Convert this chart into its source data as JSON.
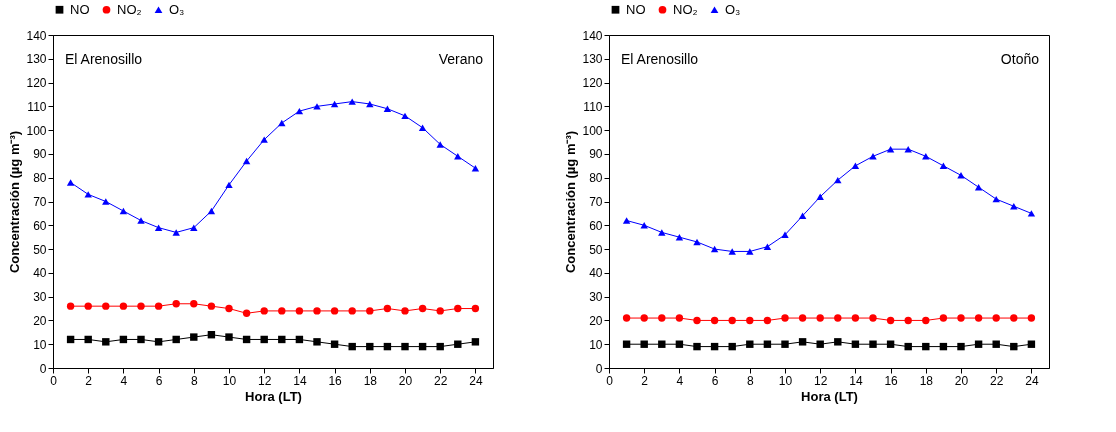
{
  "chart_data": [
    {
      "type": "line",
      "xlabel": "Hora (LT)",
      "ylabel": "Concentración (µg m⁻³)",
      "annotations": [
        "El Arenosillo",
        "Verano"
      ],
      "legend": "top",
      "grid": false,
      "line_style": "solid",
      "xlim": [
        0,
        25
      ],
      "xticks": [
        0,
        2,
        4,
        6,
        8,
        10,
        12,
        14,
        16,
        18,
        20,
        22,
        24
      ],
      "ylim": [
        0,
        140
      ],
      "yticks": [
        0,
        10,
        20,
        30,
        40,
        50,
        60,
        70,
        80,
        90,
        100,
        110,
        120,
        130,
        140
      ],
      "x": [
        1,
        2,
        3,
        4,
        5,
        6,
        7,
        8,
        9,
        10,
        11,
        12,
        13,
        14,
        15,
        16,
        17,
        18,
        19,
        20,
        21,
        22,
        23,
        24
      ],
      "series": [
        {
          "name": "NO",
          "color": "#000000",
          "marker": "square",
          "values": [
            12,
            12,
            11,
            12,
            12,
            11,
            12,
            13,
            14,
            13,
            12,
            12,
            12,
            12,
            11,
            10,
            9,
            9,
            9,
            9,
            9,
            9,
            10,
            11
          ]
        },
        {
          "name": "NO₂",
          "color": "#ff0000",
          "marker": "circle",
          "values": [
            26,
            26,
            26,
            26,
            26,
            26,
            27,
            27,
            26,
            25,
            23,
            24,
            24,
            24,
            24,
            24,
            24,
            24,
            25,
            24,
            25,
            24,
            25,
            25
          ]
        },
        {
          "name": "O₃",
          "color": "#0000ff",
          "marker": "triangle",
          "values": [
            78,
            73,
            70,
            66,
            62,
            59,
            57,
            59,
            66,
            77,
            87,
            96,
            103,
            108,
            110,
            111,
            112,
            111,
            109,
            106,
            101,
            94,
            89,
            84
          ]
        }
      ]
    },
    {
      "type": "line",
      "xlabel": "Hora (LT)",
      "ylabel": "Concentración (µg m⁻³)",
      "annotations": [
        "El Arenosillo",
        "Otoño"
      ],
      "legend": "top",
      "grid": false,
      "line_style": "solid",
      "xlim": [
        0,
        25
      ],
      "xticks": [
        0,
        2,
        4,
        6,
        8,
        10,
        12,
        14,
        16,
        18,
        20,
        22,
        24
      ],
      "ylim": [
        0,
        140
      ],
      "yticks": [
        0,
        10,
        20,
        30,
        40,
        50,
        60,
        70,
        80,
        90,
        100,
        110,
        120,
        130,
        140
      ],
      "x": [
        1,
        2,
        3,
        4,
        5,
        6,
        7,
        8,
        9,
        10,
        11,
        12,
        13,
        14,
        15,
        16,
        17,
        18,
        19,
        20,
        21,
        22,
        23,
        24
      ],
      "series": [
        {
          "name": "NO",
          "color": "#000000",
          "marker": "square",
          "values": [
            10,
            10,
            10,
            10,
            9,
            9,
            9,
            10,
            10,
            10,
            11,
            10,
            11,
            10,
            10,
            10,
            9,
            9,
            9,
            9,
            10,
            10,
            9,
            10
          ]
        },
        {
          "name": "NO₂",
          "color": "#ff0000",
          "marker": "circle",
          "values": [
            21,
            21,
            21,
            21,
            20,
            20,
            20,
            20,
            20,
            21,
            21,
            21,
            21,
            21,
            21,
            20,
            20,
            20,
            21,
            21,
            21,
            21,
            21,
            21
          ]
        },
        {
          "name": "O₃",
          "color": "#0000ff",
          "marker": "triangle",
          "values": [
            62,
            60,
            57,
            55,
            53,
            50,
            49,
            49,
            51,
            56,
            64,
            72,
            79,
            85,
            89,
            92,
            92,
            89,
            85,
            81,
            76,
            71,
            68,
            65
          ]
        }
      ]
    }
  ]
}
